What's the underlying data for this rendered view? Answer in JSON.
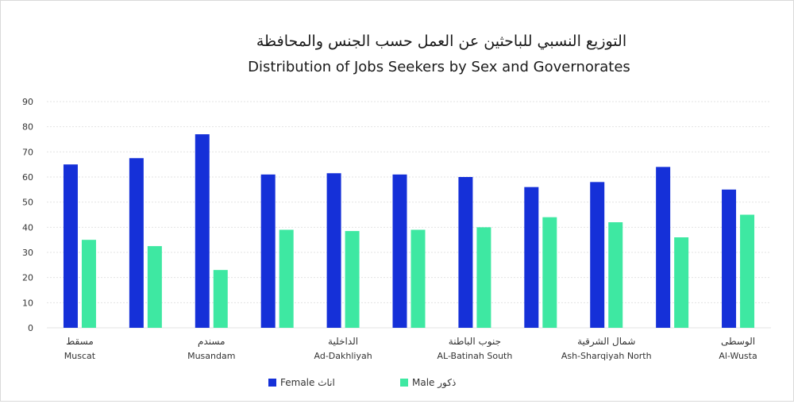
{
  "chart_data": {
    "type": "bar",
    "title_ar": "التوزيع النسبي للباحثين عن العمل حسب الجنس  والمحافظة",
    "title": "Distribution of Jobs Seekers by Sex and Governorates",
    "xlabel": "",
    "ylabel": "",
    "ylim": [
      0,
      90
    ],
    "yticks": [
      0,
      10,
      20,
      30,
      40,
      50,
      60,
      70,
      80,
      90
    ],
    "grid": true,
    "legend_position": "bottom",
    "categories": [
      {
        "ar": "مسقط",
        "en": "Muscat"
      },
      {
        "ar": "",
        "en": ""
      },
      {
        "ar": "مسندم",
        "en": "Musandam"
      },
      {
        "ar": "",
        "en": ""
      },
      {
        "ar": "الداخلية",
        "en": "Ad-Dakhliyah"
      },
      {
        "ar": "",
        "en": ""
      },
      {
        "ar": "جنوب الباطنة",
        "en": "AL-Batinah South"
      },
      {
        "ar": "",
        "en": ""
      },
      {
        "ar": "شمال الشرقية",
        "en": "Ash-Sharqiyah North"
      },
      {
        "ar": "",
        "en": ""
      },
      {
        "ar": "الوسطى",
        "en": "Al-Wusta"
      }
    ],
    "series": [
      {
        "name": "Female اناث",
        "color": "#1530d8",
        "values": [
          65,
          67.5,
          77,
          61,
          61.5,
          61,
          60,
          56,
          58,
          64,
          55
        ]
      },
      {
        "name": "Male ذكور",
        "color": "#3ee8a2",
        "values": [
          35,
          32.5,
          23,
          39,
          38.5,
          39,
          40,
          44,
          42,
          36,
          45
        ]
      }
    ]
  }
}
